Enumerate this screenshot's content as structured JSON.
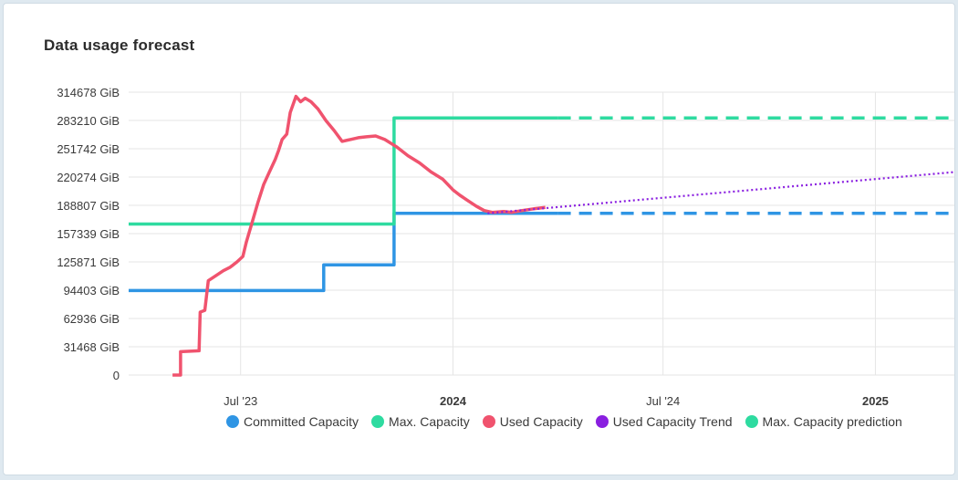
{
  "title": "Data usage forecast",
  "colors": {
    "committed": "#2f95e4",
    "max": "#2edba0",
    "used": "#f0536e",
    "trend": "#8a1fe0",
    "prediction": "#2edba0"
  },
  "chart_data": {
    "type": "line",
    "title": "Data usage forecast",
    "xlabel": "",
    "ylabel": "",
    "ylim": [
      0,
      314678
    ],
    "xlim": [
      "2023-03-26",
      "2025-03-12"
    ],
    "grid": true,
    "legend_position": "bottom",
    "y_ticks": [
      "0",
      "31468 GiB",
      "62936 GiB",
      "94403 GiB",
      "125871 GiB",
      "157339 GiB",
      "188807 GiB",
      "220274 GiB",
      "251742 GiB",
      "283210 GiB",
      "314678 GiB"
    ],
    "x_ticks": [
      {
        "label": "Jul '23",
        "date": "2023-07-01",
        "bold": false
      },
      {
        "label": "2024",
        "date": "2024-01-01",
        "bold": true
      },
      {
        "label": "Jul '24",
        "date": "2024-07-01",
        "bold": false
      },
      {
        "label": "2025",
        "date": "2025-01-01",
        "bold": true
      }
    ],
    "series": [
      {
        "name": "Committed Capacity",
        "key": "committed",
        "style": "step",
        "points": [
          [
            "2023-03-26",
            94000
          ],
          [
            "2023-09-11",
            94000
          ],
          [
            "2023-09-11",
            122500
          ],
          [
            "2023-11-11",
            122500
          ],
          [
            "2023-11-11",
            180000
          ],
          [
            "2024-04-01",
            180000
          ]
        ]
      },
      {
        "name": "Max. Capacity",
        "key": "max",
        "style": "step",
        "points": [
          [
            "2023-03-26",
            168000
          ],
          [
            "2023-11-11",
            168000
          ],
          [
            "2023-11-11",
            286000
          ],
          [
            "2024-04-01",
            286000
          ]
        ]
      },
      {
        "name": "Used Capacity",
        "key": "used",
        "style": "line",
        "points": [
          [
            "2023-05-03",
            0
          ],
          [
            "2023-05-10",
            0
          ],
          [
            "2023-05-10",
            26000
          ],
          [
            "2023-05-26",
            27000
          ],
          [
            "2023-05-27",
            70000
          ],
          [
            "2023-05-31",
            72000
          ],
          [
            "2023-06-03",
            105000
          ],
          [
            "2023-06-09",
            110000
          ],
          [
            "2023-06-16",
            116000
          ],
          [
            "2023-06-22",
            120000
          ],
          [
            "2023-06-28",
            126000
          ],
          [
            "2023-07-03",
            132000
          ],
          [
            "2023-07-06",
            148000
          ],
          [
            "2023-07-11",
            170000
          ],
          [
            "2023-07-16",
            192000
          ],
          [
            "2023-07-21",
            212000
          ],
          [
            "2023-07-26",
            226000
          ],
          [
            "2023-07-31",
            240000
          ],
          [
            "2023-08-03",
            250000
          ],
          [
            "2023-08-06",
            262000
          ],
          [
            "2023-08-10",
            268000
          ],
          [
            "2023-08-13",
            292000
          ],
          [
            "2023-08-18",
            310000
          ],
          [
            "2023-08-22",
            304000
          ],
          [
            "2023-08-26",
            308000
          ],
          [
            "2023-08-31",
            304000
          ],
          [
            "2023-09-06",
            296000
          ],
          [
            "2023-09-13",
            283000
          ],
          [
            "2023-09-20",
            272000
          ],
          [
            "2023-09-27",
            260000
          ],
          [
            "2023-10-04",
            262000
          ],
          [
            "2023-10-11",
            264000
          ],
          [
            "2023-10-18",
            265000
          ],
          [
            "2023-10-26",
            266000
          ],
          [
            "2023-11-03",
            262000
          ],
          [
            "2023-11-13",
            254000
          ],
          [
            "2023-11-23",
            244000
          ],
          [
            "2023-12-03",
            236000
          ],
          [
            "2023-12-13",
            226000
          ],
          [
            "2023-12-23",
            218000
          ],
          [
            "2024-01-01",
            206000
          ],
          [
            "2024-01-07",
            200000
          ],
          [
            "2024-01-14",
            194000
          ],
          [
            "2024-01-21",
            188000
          ],
          [
            "2024-01-28",
            183000
          ],
          [
            "2024-02-04",
            181000
          ],
          [
            "2024-02-14",
            182000
          ],
          [
            "2024-02-21",
            181000
          ],
          [
            "2024-03-01",
            183000
          ],
          [
            "2024-03-11",
            185000
          ],
          [
            "2024-03-21",
            186500
          ]
        ]
      },
      {
        "name": "Used Capacity Trend",
        "key": "trend",
        "style": "dotted",
        "points": [
          [
            "2024-01-31",
            180000
          ],
          [
            "2025-03-12",
            226000
          ]
        ]
      },
      {
        "name": "Max. Capacity prediction",
        "key": "prediction",
        "style": "dashed",
        "points": [
          [
            "2024-04-01",
            286000
          ],
          [
            "2025-03-12",
            286000
          ]
        ]
      },
      {
        "name": "",
        "key": "committed",
        "style": "dashed",
        "in_legend": false,
        "points": [
          [
            "2024-04-01",
            180000
          ],
          [
            "2025-03-12",
            180000
          ]
        ]
      }
    ]
  }
}
